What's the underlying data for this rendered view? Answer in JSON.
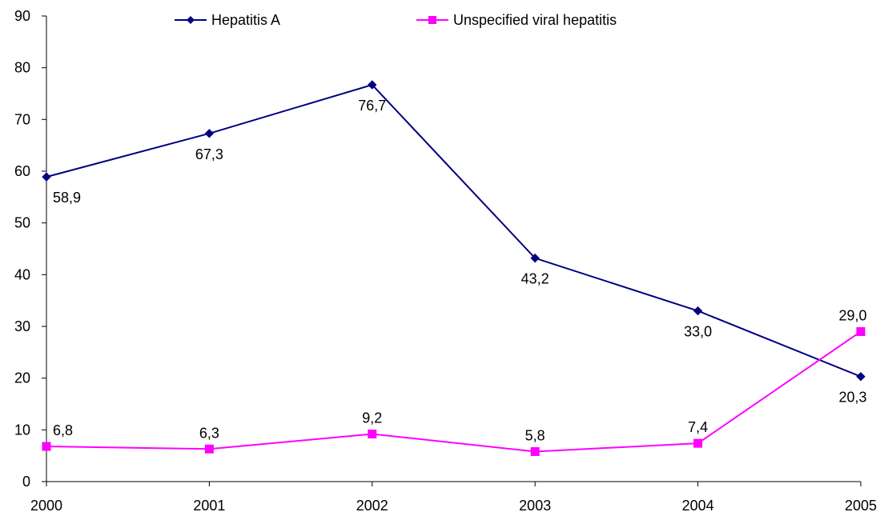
{
  "chart_data": {
    "type": "line",
    "title": "",
    "xlabel": "",
    "ylabel": "",
    "categories": [
      "2000",
      "2001",
      "2002",
      "2003",
      "2004",
      "2005"
    ],
    "ylim": [
      0,
      90
    ],
    "yticks": [
      0,
      10,
      20,
      30,
      40,
      50,
      60,
      70,
      80,
      90
    ],
    "grid": false,
    "legend_position": "top",
    "series": [
      {
        "name": "Hepatitis A",
        "color": "#000080",
        "marker": "diamond",
        "values": [
          58.9,
          67.3,
          76.7,
          43.2,
          33.0,
          20.3
        ],
        "labels": [
          "58,9",
          "67,3",
          "76,7",
          "43,2",
          "33,0",
          "20,3"
        ],
        "label_position": "below"
      },
      {
        "name": "Unspecified viral hepatitis",
        "color": "#FF00FF",
        "marker": "square",
        "values": [
          6.8,
          6.3,
          9.2,
          5.8,
          7.4,
          29.0
        ],
        "labels": [
          "6,8",
          "6,3",
          "9,2",
          "5,8",
          "7,4",
          "29,0"
        ],
        "label_position": "above"
      }
    ]
  }
}
